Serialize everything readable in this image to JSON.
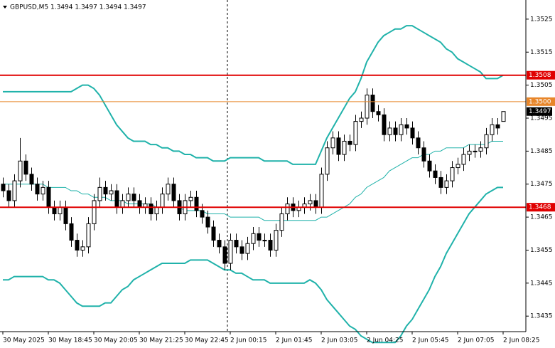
{
  "chart_data": {
    "type": "candlestick",
    "title": "GBPUSD,M5 1.3494 1.3497 1.3494 1.3497",
    "categories": [
      "30 May 2025",
      null,
      null,
      null,
      null,
      null,
      null,
      null,
      "30 May 18:45",
      null,
      null,
      null,
      null,
      null,
      null,
      null,
      "30 May 20:05",
      null,
      null,
      null,
      null,
      null,
      null,
      null,
      "30 May 21:25",
      null,
      null,
      null,
      null,
      null,
      null,
      null,
      "30 May 22:45",
      null,
      null,
      null,
      null,
      null,
      null,
      null,
      "2 Jun 00:15",
      null,
      null,
      null,
      null,
      null,
      null,
      null,
      "2 Jun 01:45",
      null,
      null,
      null,
      null,
      null,
      null,
      null,
      "2 Jun 03:05",
      null,
      null,
      null,
      null,
      null,
      null,
      null,
      "2 Jun 04:25",
      null,
      null,
      null,
      null,
      null,
      null,
      null,
      "2 Jun 05:45",
      null,
      null,
      null,
      null,
      null,
      null,
      null,
      "2 Jun 07:05",
      null,
      null,
      null,
      null,
      null,
      null,
      null,
      "2 Jun 08:25"
    ],
    "open": [
      1.3475,
      1.3473,
      1.347,
      1.3476,
      1.3482,
      1.3478,
      1.3475,
      1.3472,
      1.3474,
      1.3468,
      1.3466,
      1.3468,
      1.3463,
      1.3458,
      1.3455,
      1.3456,
      1.3463,
      1.347,
      1.3474,
      1.3472,
      1.3473,
      1.3468,
      1.347,
      1.3472,
      1.347,
      1.3468,
      1.3469,
      1.3466,
      1.3468,
      1.3472,
      1.3475,
      1.347,
      1.3466,
      1.347,
      1.3471,
      1.3467,
      1.3465,
      1.3462,
      1.3458,
      1.3456,
      1.3451,
      1.3458,
      1.3456,
      1.3454,
      1.3457,
      1.346,
      1.3458,
      1.3458,
      1.3455,
      1.3461,
      1.3466,
      1.3469,
      1.3467,
      1.3468,
      1.3469,
      1.347,
      1.3468,
      1.3478,
      1.3486,
      1.3489,
      1.3484,
      1.3488,
      1.3487,
      1.3494,
      1.3495,
      1.3502,
      1.3497,
      1.3496,
      1.349,
      1.3492,
      1.349,
      1.3493,
      1.3492,
      1.3489,
      1.3486,
      1.3482,
      1.3479,
      1.3477,
      1.3474,
      1.3476,
      1.348,
      1.3481,
      1.3484,
      1.3485,
      1.3485,
      1.3486,
      1.349,
      1.3493,
      1.3494
    ],
    "high": [
      1.3477,
      1.3475,
      1.3478,
      1.3489,
      1.3484,
      1.348,
      1.3477,
      1.3476,
      1.3476,
      1.347,
      1.347,
      1.347,
      1.3465,
      1.346,
      1.3458,
      1.3465,
      1.3472,
      1.3477,
      1.3476,
      1.3475,
      1.3475,
      1.3472,
      1.3474,
      1.3474,
      1.3472,
      1.3471,
      1.3471,
      1.347,
      1.3474,
      1.3477,
      1.3477,
      1.3472,
      1.3472,
      1.3473,
      1.3473,
      1.3469,
      1.3467,
      1.3464,
      1.346,
      1.3458,
      1.346,
      1.346,
      1.3458,
      1.3459,
      1.3462,
      1.3462,
      1.346,
      1.346,
      1.3463,
      1.3468,
      1.3471,
      1.3471,
      1.347,
      1.3471,
      1.3472,
      1.3472,
      1.348,
      1.3488,
      1.3491,
      1.3491,
      1.349,
      1.349,
      1.3496,
      1.3497,
      1.3504,
      1.3504,
      1.3499,
      1.3498,
      1.3494,
      1.3494,
      1.3495,
      1.3495,
      1.3494,
      1.3491,
      1.3488,
      1.3484,
      1.3481,
      1.3479,
      1.3478,
      1.3482,
      1.3483,
      1.3486,
      1.3487,
      1.3487,
      1.3488,
      1.3492,
      1.3495,
      1.3495,
      1.3497
    ],
    "low": [
      1.3471,
      1.3468,
      1.3468,
      1.3474,
      1.3476,
      1.3473,
      1.347,
      1.347,
      1.3466,
      1.3464,
      1.3464,
      1.3461,
      1.3456,
      1.3453,
      1.3453,
      1.3454,
      1.3461,
      1.3468,
      1.347,
      1.347,
      1.3466,
      1.3466,
      1.3468,
      1.3468,
      1.3466,
      1.3466,
      1.3464,
      1.3464,
      1.3466,
      1.347,
      1.3468,
      1.3464,
      1.3464,
      1.3468,
      1.3465,
      1.3463,
      1.346,
      1.3456,
      1.3454,
      1.3449,
      1.3449,
      1.3454,
      1.3452,
      1.3452,
      1.3455,
      1.3456,
      1.3456,
      1.3453,
      1.3453,
      1.3459,
      1.3464,
      1.3465,
      1.3465,
      1.3466,
      1.3467,
      1.3466,
      1.3466,
      1.3476,
      1.3484,
      1.3482,
      1.3482,
      1.3485,
      1.3485,
      1.3492,
      1.3493,
      1.3495,
      1.3494,
      1.3488,
      1.3488,
      1.3488,
      1.3488,
      1.349,
      1.3487,
      1.3484,
      1.348,
      1.3477,
      1.3475,
      1.3472,
      1.3472,
      1.3474,
      1.3478,
      1.3479,
      1.3482,
      1.3483,
      1.3483,
      1.3484,
      1.3488,
      1.349,
      1.3494
    ],
    "close": [
      1.3473,
      1.347,
      1.3476,
      1.3482,
      1.3478,
      1.3475,
      1.3472,
      1.3474,
      1.3468,
      1.3466,
      1.3468,
      1.3463,
      1.3458,
      1.3455,
      1.3456,
      1.3463,
      1.347,
      1.3474,
      1.3472,
      1.3473,
      1.3468,
      1.347,
      1.3472,
      1.347,
      1.3468,
      1.3469,
      1.3466,
      1.3468,
      1.3472,
      1.3475,
      1.347,
      1.3466,
      1.347,
      1.3471,
      1.3467,
      1.3465,
      1.3462,
      1.3458,
      1.3456,
      1.3451,
      1.3458,
      1.3456,
      1.3454,
      1.3457,
      1.346,
      1.3458,
      1.3458,
      1.3455,
      1.3461,
      1.3466,
      1.3469,
      1.3467,
      1.3468,
      1.3469,
      1.347,
      1.3468,
      1.3478,
      1.3486,
      1.3489,
      1.3484,
      1.3488,
      1.3487,
      1.3494,
      1.3495,
      1.3502,
      1.3497,
      1.3496,
      1.349,
      1.3492,
      1.349,
      1.3493,
      1.3492,
      1.3489,
      1.3486,
      1.3482,
      1.3479,
      1.3477,
      1.3474,
      1.3476,
      1.348,
      1.3481,
      1.3484,
      1.3485,
      1.3485,
      1.3486,
      1.349,
      1.3493,
      1.3492,
      1.3497
    ],
    "series": [
      {
        "color": "#20b2aa",
        "width": 2,
        "values": [
          1.3503,
          1.3503,
          1.3503,
          1.3503,
          1.3503,
          1.3503,
          1.3503,
          1.3503,
          1.3503,
          1.3503,
          1.3503,
          1.3503,
          1.3503,
          1.3504,
          1.3505,
          1.3505,
          1.3504,
          1.3502,
          1.3499,
          1.3496,
          1.3493,
          1.3491,
          1.3489,
          1.3488,
          1.3488,
          1.3488,
          1.3487,
          1.3487,
          1.3486,
          1.3486,
          1.3485,
          1.3485,
          1.3484,
          1.3484,
          1.3483,
          1.3483,
          1.3483,
          1.3482,
          1.3482,
          1.3482,
          1.3483,
          1.3483,
          1.3483,
          1.3483,
          1.3483,
          1.3483,
          1.3482,
          1.3482,
          1.3482,
          1.3482,
          1.3482,
          1.3481,
          1.3481,
          1.3481,
          1.3481,
          1.3481,
          1.3485,
          1.3489,
          1.3492,
          1.3495,
          1.3498,
          1.3501,
          1.3503,
          1.3507,
          1.3512,
          1.3515,
          1.3518,
          1.352,
          1.3521,
          1.3522,
          1.3522,
          1.3523,
          1.3523,
          1.3522,
          1.3521,
          1.352,
          1.3519,
          1.3518,
          1.3516,
          1.3515,
          1.3513,
          1.3512,
          1.3511,
          1.351,
          1.3509,
          1.3507,
          1.3507,
          1.3507,
          1.3508
        ]
      },
      {
        "color": "#20b2aa",
        "width": 1,
        "values": [
          1.3475,
          1.3475,
          1.3475,
          1.3475,
          1.3475,
          1.3475,
          1.3475,
          1.3475,
          1.3474,
          1.3474,
          1.3474,
          1.3474,
          1.3473,
          1.3473,
          1.3472,
          1.3472,
          1.3471,
          1.3471,
          1.3471,
          1.347,
          1.347,
          1.347,
          1.3469,
          1.3469,
          1.3469,
          1.3469,
          1.3469,
          1.3468,
          1.3468,
          1.3468,
          1.3468,
          1.3468,
          1.3467,
          1.3467,
          1.3467,
          1.3467,
          1.3466,
          1.3466,
          1.3466,
          1.3466,
          1.3465,
          1.3465,
          1.3465,
          1.3465,
          1.3465,
          1.3465,
          1.3464,
          1.3464,
          1.3464,
          1.3464,
          1.3464,
          1.3464,
          1.3464,
          1.3464,
          1.3464,
          1.3464,
          1.3465,
          1.3465,
          1.3466,
          1.3467,
          1.3468,
          1.3469,
          1.3471,
          1.3472,
          1.3474,
          1.3475,
          1.3476,
          1.3477,
          1.3479,
          1.348,
          1.3481,
          1.3482,
          1.3483,
          1.3483,
          1.3484,
          1.3484,
          1.3485,
          1.3485,
          1.3486,
          1.3486,
          1.3486,
          1.3486,
          1.3487,
          1.3487,
          1.3487,
          1.3487,
          1.3488,
          1.3488,
          1.3488
        ]
      },
      {
        "color": "#20b2aa",
        "width": 2,
        "values": [
          1.3446,
          1.3446,
          1.3447,
          1.3447,
          1.3447,
          1.3447,
          1.3447,
          1.3447,
          1.3446,
          1.3446,
          1.3445,
          1.3443,
          1.3441,
          1.3439,
          1.3438,
          1.3438,
          1.3438,
          1.3438,
          1.3439,
          1.3439,
          1.3441,
          1.3443,
          1.3444,
          1.3446,
          1.3447,
          1.3448,
          1.3449,
          1.345,
          1.3451,
          1.3451,
          1.3451,
          1.3451,
          1.3451,
          1.3452,
          1.3452,
          1.3452,
          1.3452,
          1.3451,
          1.345,
          1.3449,
          1.3449,
          1.3448,
          1.3448,
          1.3447,
          1.3446,
          1.3446,
          1.3446,
          1.3445,
          1.3445,
          1.3445,
          1.3445,
          1.3445,
          1.3445,
          1.3445,
          1.3446,
          1.3445,
          1.3443,
          1.344,
          1.3438,
          1.3436,
          1.3434,
          1.3432,
          1.3431,
          1.3429,
          1.3428,
          1.3427,
          1.3427,
          1.3427,
          1.3427,
          1.3427,
          1.3429,
          1.3432,
          1.3434,
          1.3437,
          1.344,
          1.3443,
          1.3447,
          1.345,
          1.3454,
          1.3457,
          1.346,
          1.3463,
          1.3466,
          1.3468,
          1.347,
          1.3472,
          1.3473,
          1.3474,
          1.3474
        ]
      }
    ],
    "levels": [
      {
        "value": 1.3508,
        "label": "1.3508",
        "color": "#e00000"
      },
      {
        "value": 1.35,
        "label": "1.3500",
        "color": "#e8862a"
      },
      {
        "value": 1.3468,
        "label": "1.3468",
        "color": "#e00000"
      }
    ],
    "current_price": 1.3497,
    "ylim": [
      1.34303,
      1.35308
    ],
    "yticks": [
      1.3525,
      1.3515,
      1.3505,
      1.3495,
      1.3485,
      1.3475,
      1.3465,
      1.3455,
      1.3445,
      1.3435
    ],
    "grid": false
  }
}
